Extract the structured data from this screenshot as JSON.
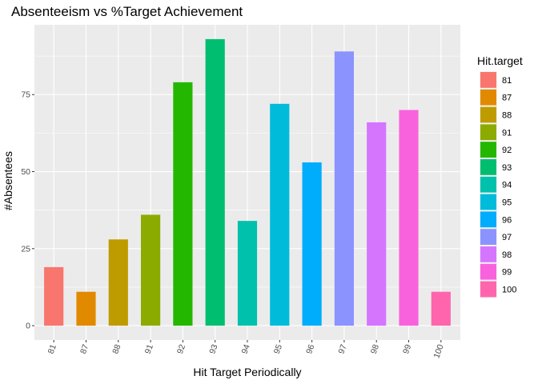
{
  "chart_data": {
    "type": "bar",
    "title": "Absenteeism vs %Target Achievement",
    "xlabel": "Hit Target Periodically",
    "ylabel": "#Absentees",
    "categories": [
      "81",
      "87",
      "88",
      "91",
      "92",
      "93",
      "94",
      "95",
      "96",
      "97",
      "98",
      "99",
      "100"
    ],
    "values": [
      19,
      11,
      28,
      36,
      79,
      93,
      34,
      72,
      53,
      89,
      66,
      70,
      11
    ],
    "ylim": [
      -4.65,
      97.65
    ],
    "yticks": [
      0,
      25,
      50,
      75
    ],
    "legend": {
      "title": "Hit.target",
      "position": "right",
      "entries": [
        "81",
        "87",
        "88",
        "91",
        "92",
        "93",
        "94",
        "95",
        "96",
        "97",
        "98",
        "99",
        "100"
      ]
    },
    "colors": [
      "#F8766D",
      "#E18A00",
      "#BE9C00",
      "#8CAB00",
      "#24B700",
      "#00BE70",
      "#00C1AB",
      "#00BBDA",
      "#00ACFC",
      "#8B93FF",
      "#D575FE",
      "#F962DD",
      "#FF65AC"
    ],
    "panel_background": "#EBEBEB",
    "grid": true,
    "x_tick_rotation": "rotated"
  }
}
